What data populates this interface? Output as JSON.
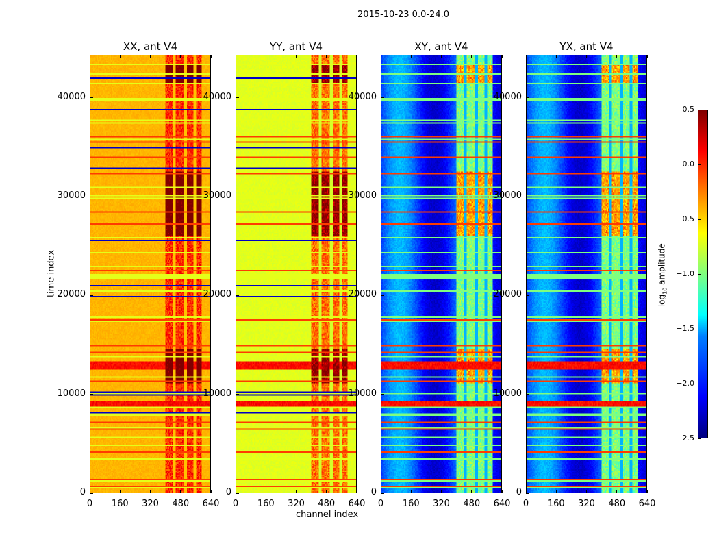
{
  "chart_data": {
    "type": "heatmap",
    "title": "2015-10-23 0.0-24.0",
    "xlabel": "channel index",
    "ylabel": "time index",
    "xlim": [
      0,
      640
    ],
    "ylim": [
      0,
      44350
    ],
    "xticks": [
      "0",
      "160",
      "320",
      "480",
      "640"
    ],
    "xtick_values": [
      0,
      160,
      320,
      480,
      640
    ],
    "yticks": [
      "0",
      "10000",
      "20000",
      "30000",
      "40000"
    ],
    "ytick_values": [
      0,
      10000,
      20000,
      30000,
      40000
    ],
    "colormap": "jet",
    "colorbar": {
      "label": "log10 amplitude",
      "label_main": "log",
      "label_sub": "10",
      "label_rest": " amplitude",
      "range": [
        -2.5,
        0.5
      ],
      "ticks": [
        "0.5",
        "0.0",
        "−0.5",
        "−1.0",
        "−1.5",
        "−2.0",
        "−2.5"
      ],
      "tick_values": [
        0.5,
        0.0,
        -0.5,
        -1.0,
        -1.5,
        -2.0,
        -2.5
      ]
    },
    "panels": [
      {
        "title": "XX, ant V4",
        "base_level": -0.45,
        "rfi_level": 0.1
      },
      {
        "title": "YY, ant V4",
        "base_level": -0.75,
        "rfi_level": -0.1
      },
      {
        "title": "XY, ant V4",
        "base_level": -2.0,
        "rfi_level": -0.9
      },
      {
        "title": "YX, ant V4",
        "base_level": -2.0,
        "rfi_level": -0.9
      }
    ],
    "rfi_channel_range": [
      400,
      590
    ],
    "strong_rfi_time_ranges": [
      [
        11000,
        14500
      ],
      [
        26000,
        32500
      ],
      [
        41500,
        43500
      ]
    ],
    "broadband_bright_time_ranges": [
      [
        8500,
        9200
      ],
      [
        12400,
        13200
      ]
    ],
    "flat_time_range": [
      36300,
      40000
    ]
  }
}
